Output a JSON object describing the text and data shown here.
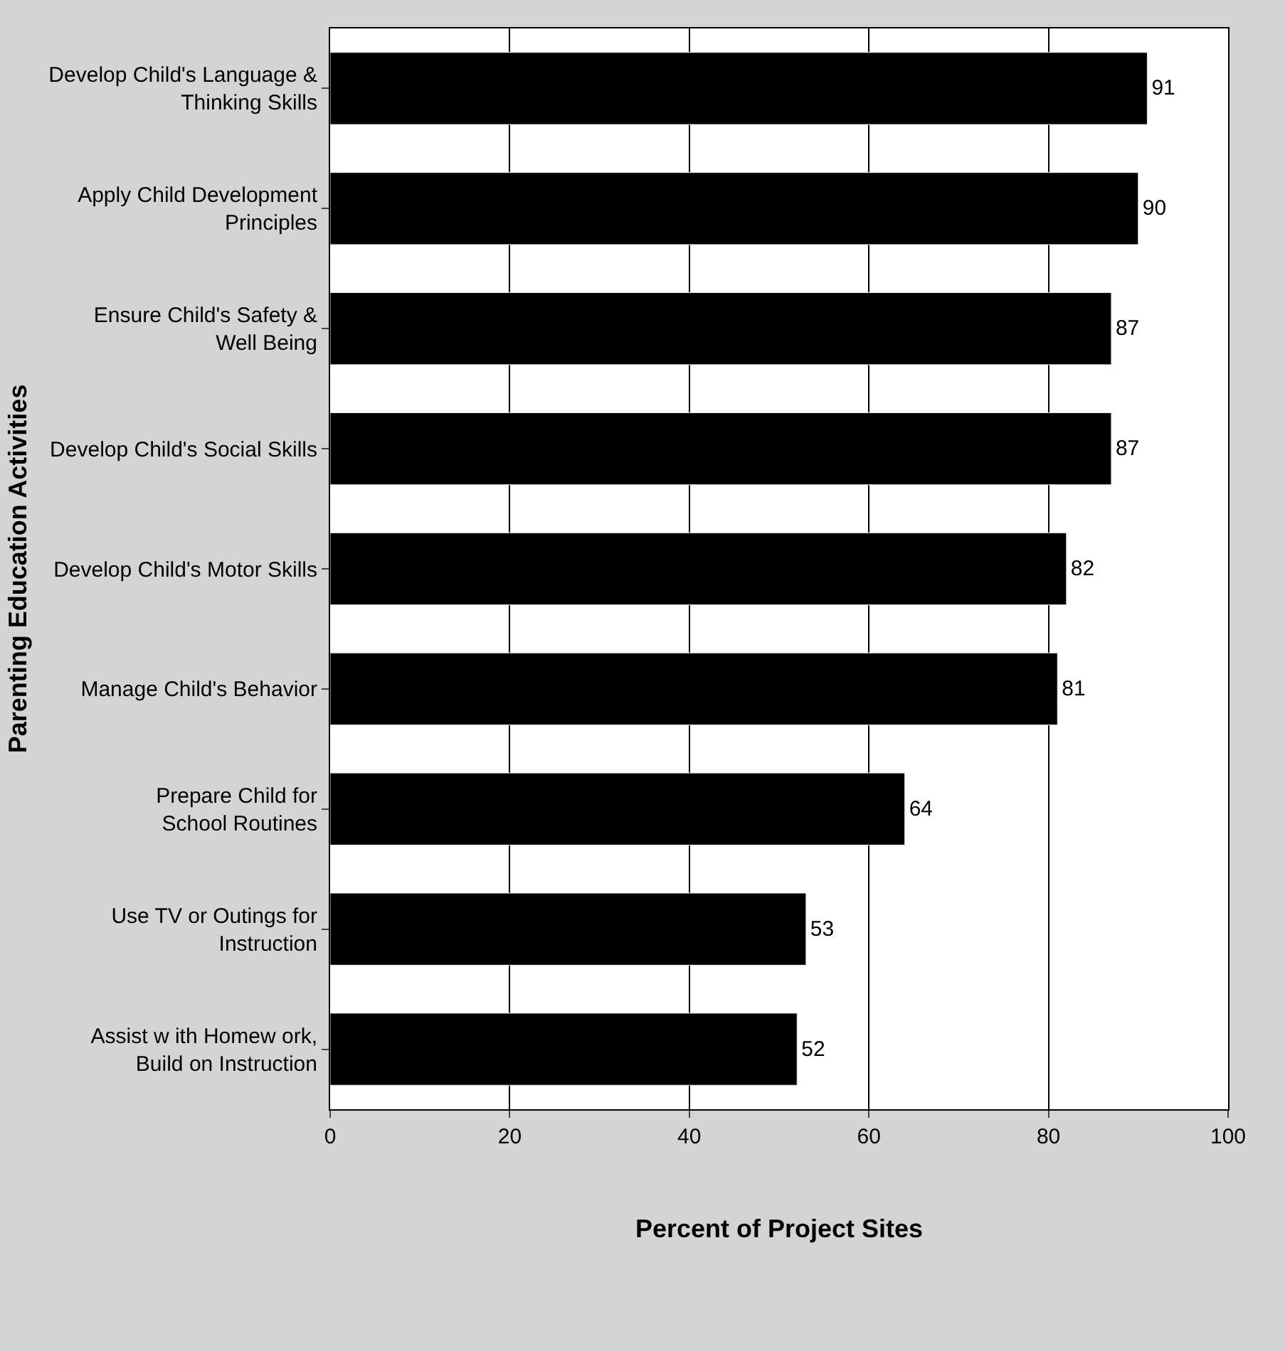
{
  "chart_data": {
    "type": "bar",
    "orientation": "horizontal",
    "xlabel": "Percent of Project Sites",
    "ylabel": "Parenting Education Activities",
    "categories": [
      "Develop Child's Language &\nThinking Skills",
      "Apply Child Development\nPrinciples",
      "Ensure Child's Safety &\nWell Being",
      "Develop Child's Social Skills",
      "Develop Child's Motor Skills",
      "Manage Child's Behavior",
      "Prepare Child for\nSchool Routines",
      "Use TV or Outings for\nInstruction",
      "Assist w ith Homew ork,\nBuild on Instruction"
    ],
    "values": [
      91,
      90,
      87,
      87,
      82,
      81,
      64,
      53,
      52
    ],
    "color": "#000000",
    "data_labels": true,
    "xlim": [
      0,
      100
    ],
    "xticks": [
      0,
      20,
      40,
      60,
      80,
      100
    ],
    "grid": "x",
    "legend": false
  }
}
